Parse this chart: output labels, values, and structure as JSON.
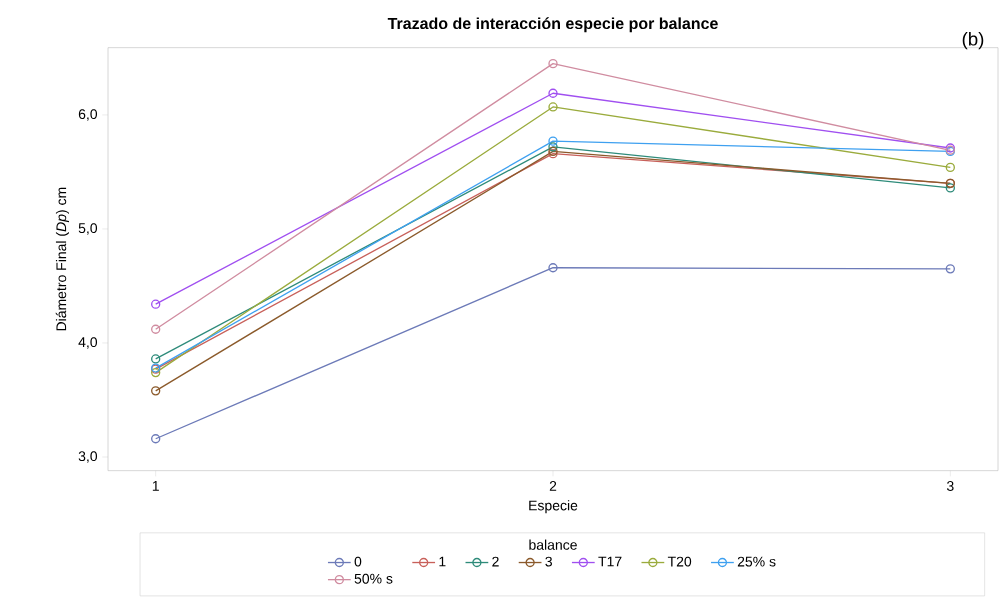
{
  "chart_data": {
    "type": "line",
    "title": "Trazado de interacción especie por balance",
    "xlabel": "Especie",
    "ylabel": "Diámetro Final (*Dp*) cm",
    "legend_title": "balance",
    "annotations": [
      "(b)"
    ],
    "x": [
      1,
      2,
      3
    ],
    "xlim": [
      0.88,
      3.12
    ],
    "xticks": [
      1,
      2,
      3
    ],
    "ylim": [
      2.88,
      6.59
    ],
    "yticks": [
      {
        "value": 3,
        "label": "3,0"
      },
      {
        "value": 4,
        "label": "4,0"
      },
      {
        "value": 5,
        "label": "5,0"
      },
      {
        "value": 6,
        "label": "6,0"
      }
    ],
    "marker": "circle",
    "legend": "bottom",
    "series": [
      {
        "name": "0",
        "color": "#6c7ab8",
        "values": [
          3.16,
          4.66,
          4.65
        ]
      },
      {
        "name": "1",
        "color": "#c8605a",
        "values": [
          3.77,
          5.66,
          5.4
        ]
      },
      {
        "name": "2",
        "color": "#2e8b7a",
        "values": [
          3.86,
          5.72,
          5.36
        ]
      },
      {
        "name": "3",
        "color": "#8b5a2b",
        "values": [
          3.58,
          5.68,
          5.4
        ]
      },
      {
        "name": "T17",
        "color": "#a04ff0",
        "values": [
          4.34,
          6.19,
          5.71
        ]
      },
      {
        "name": "T20",
        "color": "#9aab3c",
        "values": [
          3.74,
          6.07,
          5.54
        ]
      },
      {
        "name": "25% s",
        "color": "#3ea0f0",
        "values": [
          3.78,
          5.77,
          5.68
        ]
      },
      {
        "name": "50% s",
        "color": "#d08ca0",
        "values": [
          4.12,
          6.45,
          5.69
        ]
      }
    ]
  }
}
